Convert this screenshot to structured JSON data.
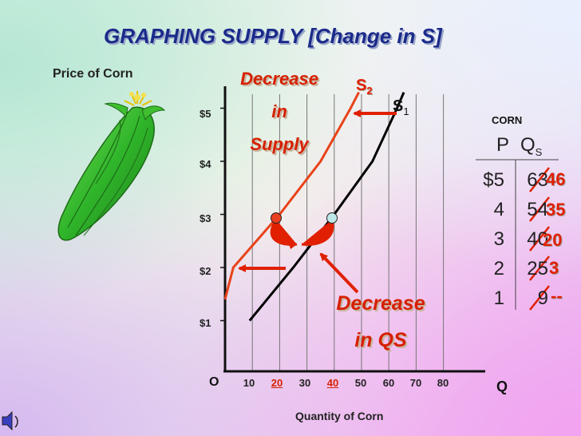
{
  "title": "GRAPHING SUPPLY [Change in S]",
  "chart_data": {
    "type": "line",
    "ylabel": "Price of Corn",
    "xlabel": "Quantity of Corn",
    "origin_label": "O",
    "q_axis_label": "Q",
    "y_ticks": [
      "$1",
      "$2",
      "$3",
      "$4",
      "$5"
    ],
    "x_ticks": [
      "10",
      "20",
      "30",
      "40",
      "50",
      "60",
      "70",
      "80"
    ],
    "highlighted_x_ticks": [
      "20",
      "40"
    ],
    "series": [
      {
        "name": "S1",
        "color": "#000000",
        "x": [
          9,
          25,
          40,
          54,
          63
        ],
        "y": [
          1,
          2,
          3,
          4,
          5
        ]
      },
      {
        "name": "S2",
        "color": "#e8431a",
        "x": [
          0,
          3,
          20,
          35,
          46
        ],
        "y": [
          1.4,
          2,
          3,
          4,
          5
        ]
      }
    ],
    "annotations": {
      "decrease_supply": [
        "Decrease",
        "in",
        "Supply"
      ],
      "decrease_qs": [
        "Decrease",
        "in QS"
      ]
    },
    "curve_labels": {
      "s2": "S",
      "s2_sub": "2",
      "s1": "S",
      "s1_sub": "1"
    }
  },
  "schedule": {
    "title": "CORN",
    "col_p": "P",
    "col_q": "Q",
    "col_q_sub": "S",
    "rows": [
      {
        "p": "$5",
        "q": "63",
        "new_q": "46"
      },
      {
        "p": "4",
        "q": "54",
        "new_q": "35"
      },
      {
        "p": "3",
        "q": "40",
        "new_q": "20"
      },
      {
        "p": "2",
        "q": "25",
        "new_q": "3"
      },
      {
        "p": "1",
        "q": "9",
        "new_q": "--"
      }
    ]
  },
  "colors": {
    "title": "#1b2a8a",
    "accent": "#d62000",
    "s2": "#e8431a",
    "s1": "#000000"
  }
}
